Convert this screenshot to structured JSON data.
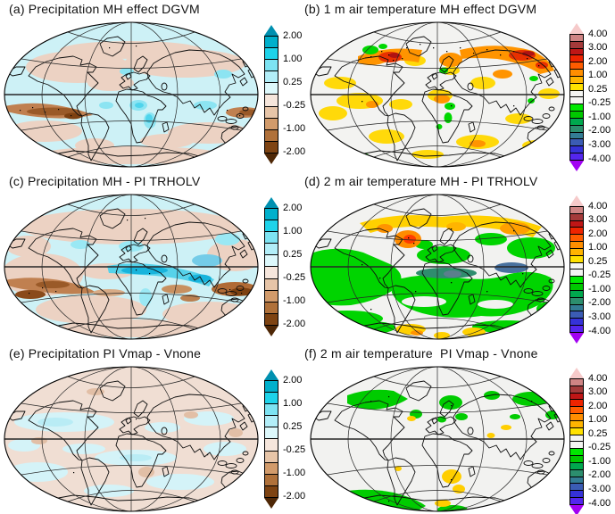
{
  "page": {
    "background": "#ffffff"
  },
  "panels": [
    {
      "id": "a",
      "title": "(a) Precipitation MH effect DGVM",
      "colorbar": {
        "labels": [
          "2.00",
          "1.00",
          "0.25",
          "-0.25",
          "-1.00",
          "-2.00"
        ],
        "cells": [
          "#00b0cc",
          "#1ed3ea",
          "#7de3f2",
          "#b2eef8",
          "#ddf8fb",
          "#f6e6dc",
          "#e7c5a8",
          "#d29b6b",
          "#b0713a",
          "#7e4312"
        ],
        "arrow_top": "#0090b0",
        "arrow_bottom": "#4e2706"
      }
    },
    {
      "id": "b",
      "title": "(b) 1 m air temperature MH effect DGVM",
      "colorbar": {
        "labels": [
          "4.00",
          "3.00",
          "2.00",
          "1.00",
          "0.25",
          "-0.25",
          "-1.00",
          "-2.00",
          "-3.00",
          "-4.00"
        ],
        "cells": [
          "#cf8484",
          "#a43a3a",
          "#bf1616",
          "#ee2400",
          "#ff5c00",
          "#ff8e00",
          "#ffb400",
          "#ffe100",
          "#f4f4f1",
          "#f4f4f1",
          "#00e800",
          "#00c800",
          "#00a84e",
          "#2c8e6e",
          "#337c94",
          "#3b5cb4",
          "#3532d8",
          "#5426ee"
        ],
        "arrow_top": "#f6caca",
        "arrow_bottom": "#a202f2"
      }
    },
    {
      "id": "c",
      "title": "(c) Precipitation MH - PI TRHOLV",
      "colorbar": {
        "labels": [
          "2.00",
          "1.00",
          "0.25",
          "-0.25",
          "-1.00",
          "-2.00"
        ],
        "cells": [
          "#00b0cc",
          "#1ed3ea",
          "#7de3f2",
          "#b2eef8",
          "#ddf8fb",
          "#f6e6dc",
          "#e7c5a8",
          "#d29b6b",
          "#b0713a",
          "#7e4312"
        ],
        "arrow_top": "#0090b0",
        "arrow_bottom": "#4e2706"
      }
    },
    {
      "id": "d",
      "title": "(d) 2 m air temperature MH - PI TRHOLV",
      "colorbar": {
        "labels": [
          "4.00",
          "3.00",
          "2.00",
          "1.00",
          "0.25",
          "-0.25",
          "-1.00",
          "-2.00",
          "-3.00",
          "-4.00"
        ],
        "cells": [
          "#cf8484",
          "#a43a3a",
          "#bf1616",
          "#ee2400",
          "#ff5c00",
          "#ff8e00",
          "#ffb400",
          "#ffe100",
          "#f4f4f1",
          "#f4f4f1",
          "#00e800",
          "#00c800",
          "#00a84e",
          "#2c8e6e",
          "#337c94",
          "#3b5cb4",
          "#3532d8",
          "#5426ee"
        ],
        "arrow_top": "#f6caca",
        "arrow_bottom": "#a202f2"
      }
    },
    {
      "id": "e",
      "title": "(e) Precipitation PI Vmap - Vnone",
      "colorbar": {
        "labels": [
          "2.00",
          "1.00",
          "0.25",
          "-0.25",
          "-1.00",
          "-2.00"
        ],
        "cells": [
          "#00b0cc",
          "#1ed3ea",
          "#7de3f2",
          "#b2eef8",
          "#ddf8fb",
          "#f6e6dc",
          "#e7c5a8",
          "#d29b6b",
          "#b0713a",
          "#7e4312"
        ],
        "arrow_top": "#0090b0",
        "arrow_bottom": "#4e2706"
      }
    },
    {
      "id": "f",
      "title": "(f) 2 m air temperature  PI Vmap - Vnone",
      "colorbar": {
        "labels": [
          "4.00",
          "3.00",
          "2.00",
          "1.00",
          "0.25",
          "-0.25",
          "-1.00",
          "-2.00",
          "-3.00",
          "-4.00"
        ],
        "cells": [
          "#cf8484",
          "#a43a3a",
          "#bf1616",
          "#ee2400",
          "#ff5c00",
          "#ff8e00",
          "#ffb400",
          "#ffe100",
          "#f4f4f1",
          "#f4f4f1",
          "#00e800",
          "#00c800",
          "#00a84e",
          "#2c8e6e",
          "#337c94",
          "#3b5cb4",
          "#3532d8",
          "#5426ee"
        ],
        "arrow_top": "#f6caca",
        "arrow_bottom": "#a202f2"
      }
    }
  ],
  "chart_data": [
    {
      "type": "heatmap",
      "panel": "a",
      "title": "(a) Precipitation MH effect DGVM",
      "projection": "global elliptical (Hammer-type) map, graticule every 30 deg lat / 60 deg lon",
      "colorbar_ticks": [
        2.0,
        1.0,
        0.25,
        -0.25,
        -1.0,
        -2.0
      ],
      "palette": "cyan/teal = positive (top), near-white center, tan/brown = negative (bottom); open-ended arrows both ends",
      "summary": "Weak positive (pale cyan) anomalies over most oceans and continents; brown negative band along the eastern equatorial Pacific and northern South America with a dark core near Peru; brown band at the western Pacific right edge; scattered pale tan patches at high latitudes and over the southern ocean; brighter cyan spots over central/eastern Africa."
    },
    {
      "type": "heatmap",
      "panel": "b",
      "title": "(b) 1 m air temperature MH effect DGVM",
      "projection": "global elliptical (Hammer-type) map, graticule every 30 deg lat / 60 deg lon",
      "colorbar_ticks": [
        4.0,
        3.0,
        2.0,
        1.0,
        0.25,
        -0.25,
        -1.0,
        -2.0,
        -3.0,
        -4.0
      ],
      "palette": "red/orange/yellow = positive warming (top), white center, green/teal/blue/violet = negative cooling (bottom); open-ended arrows",
      "summary": "Mostly near-zero (white) oceans; strong orange-red warming across high northern latitudes (Canada, Scandinavia, Siberia) with dark-red cores and dense stippling; scattered yellow patches in subtropical oceans and mid-latitudes; small green cooling spots over NW Canada, the Baltic, central and eastern Africa, and the southern ocean."
    },
    {
      "type": "heatmap",
      "panel": "c",
      "title": "(c) Precipitation MH - PI TRHOLV",
      "projection": "global elliptical (Hammer-type) map, graticule every 30 deg lat / 60 deg lon",
      "colorbar_ticks": [
        2.0,
        1.0,
        0.25,
        -0.25,
        -1.0,
        -2.0
      ],
      "palette": "cyan/teal = positive (top), near-white center, tan/brown = negative (bottom); open-ended arrows",
      "summary": "Strong cyan wet band across the Sahara, Arabia and India with deeper cyan cores; pale cyan high latitudes; widespread pale tan elsewhere; brown dry band along the equatorial eastern Pacific and northern South America; dark brown patches over the western Pacific right edge and Indian-ocean sector."
    },
    {
      "type": "heatmap",
      "panel": "d",
      "title": "(d) 2 m air temperature MH - PI TRHOLV",
      "projection": "global elliptical (Hammer-type) map, graticule every 30 deg lat / 60 deg lon",
      "colorbar_ticks": [
        4.0,
        3.0,
        2.0,
        1.0,
        0.25,
        -0.25,
        -1.0,
        -2.0,
        -3.0,
        -4.0
      ],
      "palette": "red/orange/yellow = positive (top), white center, green/teal/blue/violet = negative (bottom); open-ended arrows",
      "summary": "Widespread bright-green cooling over the tropics and mid-latitudes of both hemispheres with white gaps; darker teal over the Sahara and blue-gray over South Asia; yellow-orange warming band along the Arctic rim with a strong red-orange core near Greenland/Baffin; yellow spots near Antarctica."
    },
    {
      "type": "heatmap",
      "panel": "e",
      "title": "(e) Precipitation PI Vmap - Vnone",
      "projection": "global elliptical (Hammer-type) map, graticule every 30 deg lat / 60 deg lon",
      "colorbar_ticks": [
        2.0,
        1.0,
        0.25,
        -0.25,
        -1.0,
        -2.0
      ],
      "palette": "cyan/teal = positive (top), near-white center, tan/brown = negative (bottom); open-ended arrows",
      "summary": "Very weak mottled signal: pale pink-tan background interleaved with pale cyan streaks over oceans; only a few slightly darker tan spots (e.g. southern Africa, NW Pacific); no strong anomalies."
    },
    {
      "type": "heatmap",
      "panel": "f",
      "title": "(f) 2 m air temperature  PI Vmap - Vnone",
      "projection": "global elliptical (Hammer-type) map, graticule every 30 deg lat / 60 deg lon",
      "colorbar_ticks": [
        4.0,
        3.0,
        2.0,
        1.0,
        0.25,
        -0.25,
        -1.0,
        -2.0,
        -3.0,
        -4.0
      ],
      "palette": "red/orange/yellow = positive (top), white center, green/teal/blue/violet = negative (bottom); open-ended arrows",
      "summary": "Mostly near-zero (white); green cooling patches over northern North America, southern Greenland, Scandinavia and eastern Siberia; green band over West Antarctica; yellow warming spots over southern Africa, near Antarctica and a few small tropical points."
    }
  ]
}
